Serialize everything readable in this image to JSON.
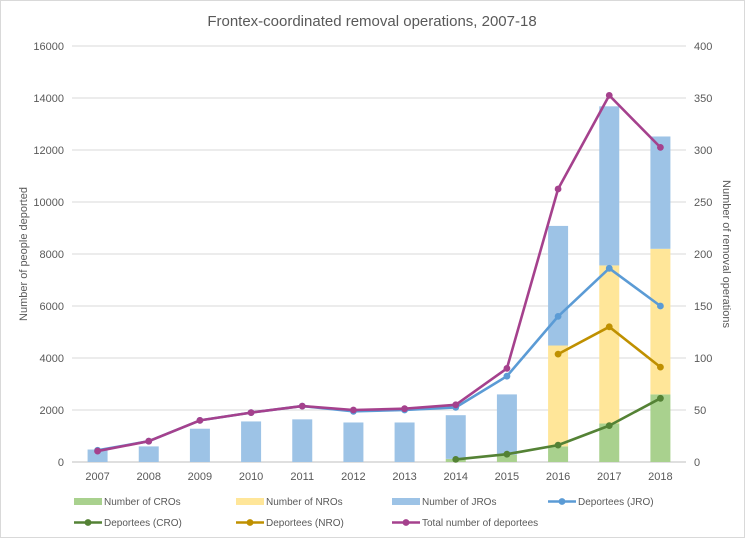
{
  "chart_data": {
    "type": "bar",
    "title": "Frontex-coordinated removal operations, 2007-18",
    "ylabel_left": "Number of people deported",
    "ylabel_right": "Number of removal operations",
    "ylim_left": [
      0,
      16000
    ],
    "ylim_right": [
      0,
      400
    ],
    "yticks_left": [
      "0",
      "2000",
      "4000",
      "6000",
      "8000",
      "10000",
      "12000",
      "14000",
      "16000"
    ],
    "yticks_right": [
      "0",
      "50",
      "100",
      "150",
      "200",
      "250",
      "300",
      "350",
      "400"
    ],
    "categories": [
      "2007",
      "2008",
      "2009",
      "2010",
      "2011",
      "2012",
      "2013",
      "2014",
      "2015",
      "2016",
      "2017",
      "2018"
    ],
    "grid": true,
    "legend_position": "bottom",
    "bar_series": [
      {
        "name": "Number of CROs",
        "color": "#a9d18e",
        "axis": "right",
        "values": [
          0,
          0,
          0,
          0,
          0,
          0,
          0,
          3,
          7,
          15,
          37,
          65
        ]
      },
      {
        "name": "Number of NROs",
        "color": "#ffe699",
        "axis": "right",
        "values": [
          0,
          0,
          0,
          0,
          0,
          0,
          0,
          0,
          0,
          97,
          152,
          140
        ]
      },
      {
        "name": "Number of JROs",
        "color": "#9dc3e6",
        "axis": "right",
        "values": [
          12,
          15,
          32,
          39,
          41,
          38,
          38,
          42,
          58,
          115,
          153,
          108
        ]
      }
    ],
    "line_series": [
      {
        "name": "Deportees (JRO)",
        "color": "#5b9bd5",
        "axis": "left",
        "values": [
          450,
          800,
          1600,
          1900,
          2150,
          1950,
          2000,
          2100,
          3300,
          5600,
          7450,
          6000
        ]
      },
      {
        "name": "Deportees (CRO)",
        "color": "#548235",
        "axis": "left",
        "values": [
          null,
          null,
          null,
          null,
          null,
          null,
          null,
          100,
          300,
          650,
          1400,
          2450
        ]
      },
      {
        "name": "Deportees (NRO)",
        "color": "#bf9000",
        "axis": "left",
        "values": [
          null,
          null,
          null,
          null,
          null,
          null,
          null,
          null,
          null,
          4150,
          5200,
          3650
        ]
      },
      {
        "name": "Total number of deportees",
        "color": "#a5418d",
        "axis": "left",
        "values": [
          420,
          800,
          1600,
          1900,
          2150,
          2000,
          2050,
          2200,
          3600,
          10500,
          14100,
          12100
        ]
      }
    ],
    "legend": [
      {
        "label": "Number of CROs",
        "kind": "bar",
        "color": "#a9d18e"
      },
      {
        "label": "Number of NROs",
        "kind": "bar",
        "color": "#ffe699"
      },
      {
        "label": "Number of JROs",
        "kind": "bar",
        "color": "#9dc3e6"
      },
      {
        "label": "Deportees (JRO)",
        "kind": "line",
        "color": "#5b9bd5"
      },
      {
        "label": "Deportees (CRO)",
        "kind": "line",
        "color": "#548235"
      },
      {
        "label": "Deportees (NRO)",
        "kind": "line",
        "color": "#bf9000"
      },
      {
        "label": "Total number of deportees",
        "kind": "line",
        "color": "#a5418d"
      }
    ]
  }
}
